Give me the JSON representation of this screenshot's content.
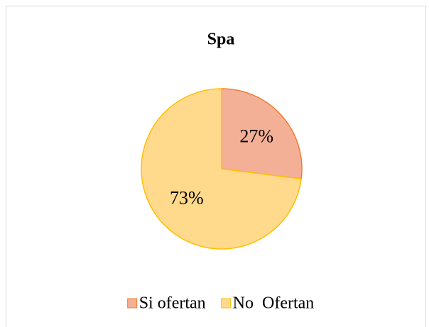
{
  "chart_data": {
    "type": "pie",
    "title": "Spa",
    "categories": [
      "Si ofertan",
      "No  Ofertan"
    ],
    "values": [
      27,
      73
    ],
    "value_labels": [
      "27%",
      "73%"
    ],
    "colors": [
      "#f4b097",
      "#ffd98c"
    ],
    "stroke_colors": [
      "#ed7d31",
      "#ffc000"
    ],
    "legend": "bottom"
  }
}
